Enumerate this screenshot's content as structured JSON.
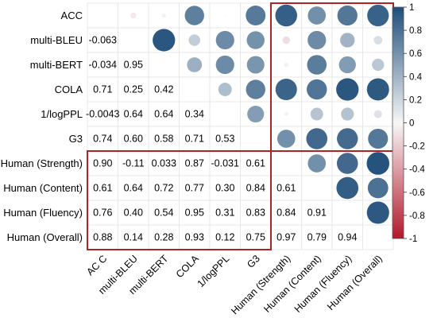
{
  "chart_data": {
    "type": "heatmap",
    "variables": [
      "ACC",
      "multi-BLEU",
      "multi-BERT",
      "COLA",
      "1/logPPL",
      "G3",
      "Human (Strength)",
      "Human (Content)",
      "Human (Fluency)",
      "Human (Overall)"
    ],
    "row_labels": [
      "ACC",
      "multi-BLEU",
      "multi-BERT",
      "COLA",
      "1/logPPL",
      "G3",
      "Human (Strength)",
      "Human (Content)",
      "Human (Fluency)",
      "Human (Overall)"
    ],
    "col_labels": [
      "AC C",
      "multi-BLEU",
      "multi-BERT",
      "COLA",
      "1/logPPL",
      "G3",
      "Human (Strength)",
      "Human (Content)",
      "Human (Fluency)",
      "Human (Overall)"
    ],
    "lower_triangle_labels": [
      [],
      [
        "-0.063"
      ],
      [
        "-0.034",
        "0.95"
      ],
      [
        "0.71",
        "0.25",
        "0.42"
      ],
      [
        "-0.0043",
        "0.64",
        "0.64",
        "0.34"
      ],
      [
        "0.74",
        "0.60",
        "0.58",
        "0.71",
        "0.53"
      ],
      [
        "0.90",
        "-0.11",
        "0.033",
        "0.87",
        "-0.031",
        "0.61"
      ],
      [
        "0.61",
        "0.64",
        "0.72",
        "0.77",
        "0.30",
        "0.84",
        "0.61"
      ],
      [
        "0.76",
        "0.40",
        "0.54",
        "0.95",
        "0.31",
        "0.83",
        "0.84",
        "0.91"
      ],
      [
        "0.88",
        "0.14",
        "0.28",
        "0.93",
        "0.12",
        "0.75",
        "0.97",
        "0.79",
        "0.94"
      ]
    ],
    "legend": {
      "min": -1,
      "max": 1,
      "ticks": [
        "1",
        "0.8",
        "0.6",
        "0.4",
        "0.2",
        "0",
        "-0.2",
        "-0.4",
        "-0.6",
        "-0.8",
        "-1"
      ],
      "color_positive": "#1f4e79",
      "color_zero": "#f7f7f7",
      "color_negative": "#b2182b",
      "placement": "right"
    },
    "grid": true,
    "highlight_color": "#b22222"
  }
}
